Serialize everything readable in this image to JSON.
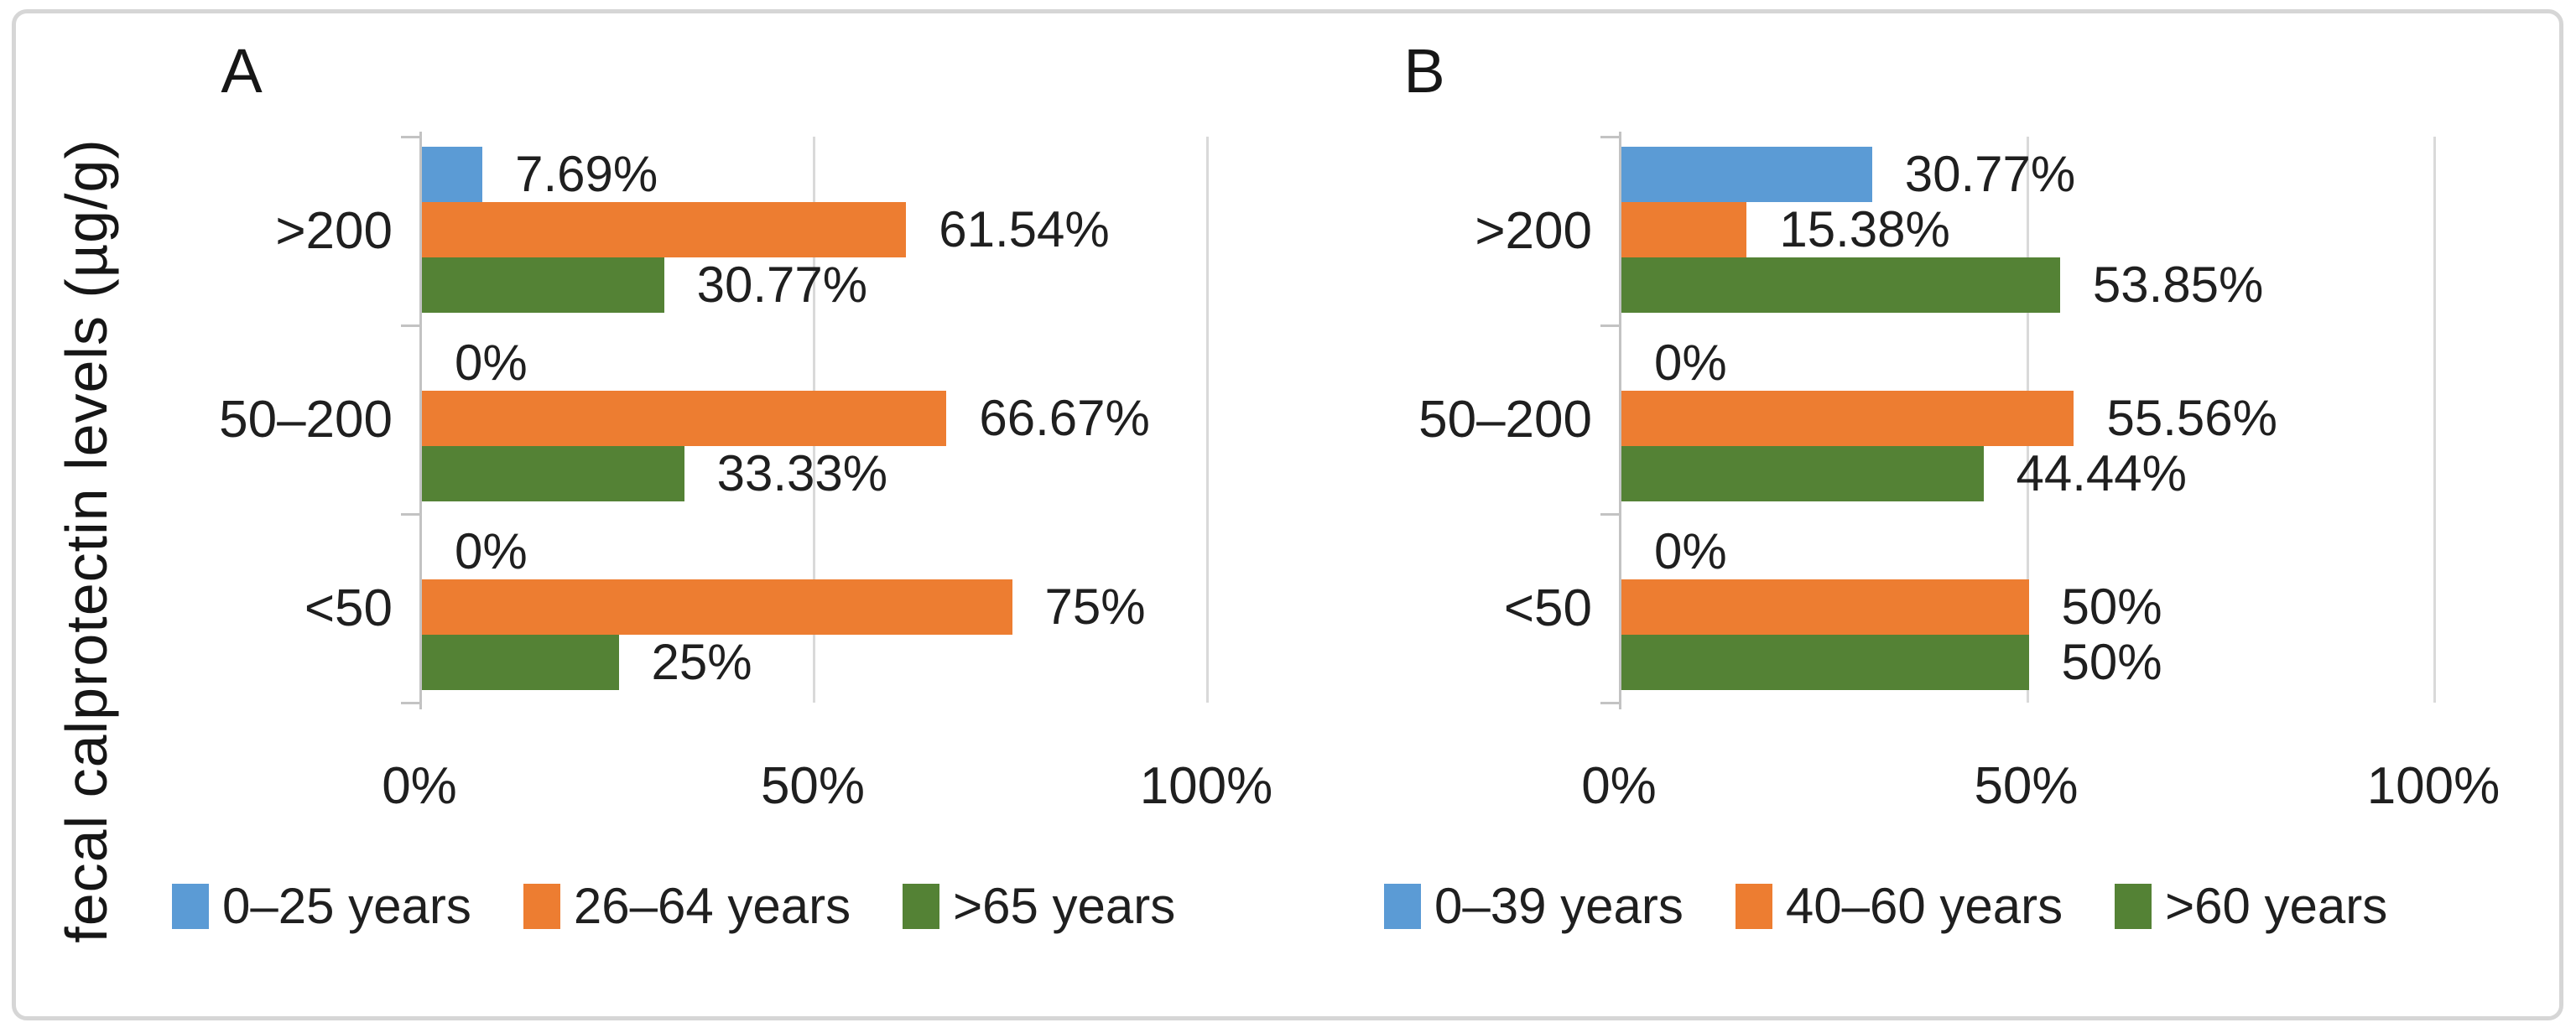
{
  "figure": {
    "y_axis_title": "fecal calprotectin levels (µg/g)"
  },
  "colors": {
    "blue": "#5B9BD5",
    "orange": "#ED7D31",
    "green": "#548235",
    "gridline": "#D9D9D9",
    "axis": "#C3C3C3",
    "text": "#1F1F1F",
    "frame": "#D6D6D6"
  },
  "chart_data": [
    {
      "type": "bar",
      "orientation": "horizontal",
      "panel_label": "A",
      "categories": [
        ">200",
        "50–200",
        "<50"
      ],
      "series": [
        {
          "name": "0–25 years",
          "color_key": "blue",
          "values": [
            7.69,
            0,
            0
          ],
          "labels": [
            "7.69%",
            "0%",
            "0%"
          ]
        },
        {
          "name": "26–64 years",
          "color_key": "orange",
          "values": [
            61.54,
            66.67,
            75
          ],
          "labels": [
            "61.54%",
            "66.67%",
            "75%"
          ]
        },
        {
          "name": ">65 years",
          "color_key": "green",
          "values": [
            30.77,
            33.33,
            25
          ],
          "labels": [
            "30.77%",
            "33.33%",
            "25%"
          ]
        }
      ],
      "x_ticks": [
        "0%",
        "50%",
        "100%"
      ],
      "x_tick_values": [
        0,
        50,
        100
      ],
      "xlim": [
        0,
        100
      ],
      "grid": true,
      "legend_position": "bottom"
    },
    {
      "type": "bar",
      "orientation": "horizontal",
      "panel_label": "B",
      "categories": [
        ">200",
        "50–200",
        "<50"
      ],
      "series": [
        {
          "name": "0–39 years",
          "color_key": "blue",
          "values": [
            30.77,
            0,
            0
          ],
          "labels": [
            "30.77%",
            "0%",
            "0%"
          ]
        },
        {
          "name": "40–60 years",
          "color_key": "orange",
          "values": [
            15.38,
            55.56,
            50
          ],
          "labels": [
            "15.38%",
            "55.56%",
            "50%"
          ]
        },
        {
          "name": ">60 years",
          "color_key": "green",
          "values": [
            53.85,
            44.44,
            50
          ],
          "labels": [
            "53.85%",
            "44.44%",
            "50%"
          ]
        }
      ],
      "x_ticks": [
        "0%",
        "50%",
        "100%"
      ],
      "x_tick_values": [
        0,
        50,
        100
      ],
      "xlim": [
        0,
        100
      ],
      "grid": true,
      "legend_position": "bottom"
    }
  ]
}
